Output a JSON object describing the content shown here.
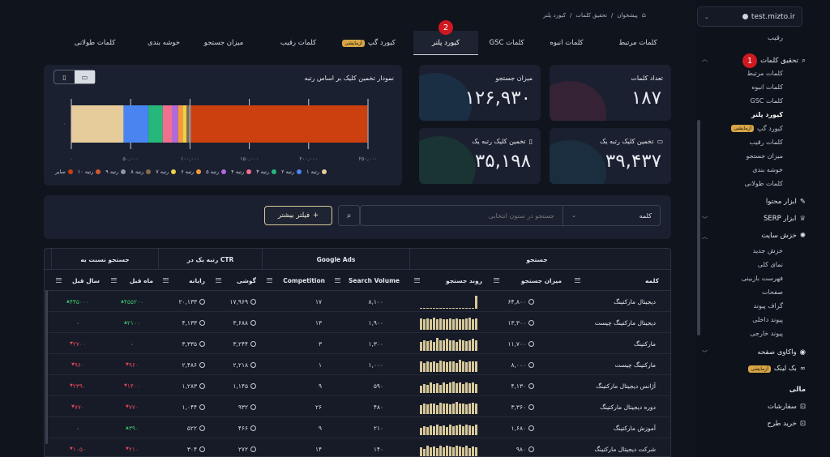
{
  "breadcrumb": [
    "پیشخوان",
    "تحقیق کلمات",
    "کیورد پلنر"
  ],
  "sidebar": {
    "domain": "test.mizto.ir",
    "items_top": "رقیب",
    "research": {
      "label": "تحقیق کلمات",
      "marker": "1"
    },
    "research_sub": [
      "کلمات مرتبط",
      "کلمات انبوه",
      "کلمات GSC",
      "کیورد پلنر",
      "کیورد گپ",
      "کلمات رقیب",
      "میزان جستجو",
      "خوشه بندی",
      "کلمات طولانی"
    ],
    "trial_badge": "آزمایشی",
    "content_tools": "ابزار محتوا",
    "serp_tools": "ابزار SERP",
    "crawl": "خزش سایت",
    "crawl_sub": [
      "خزش جدید",
      "نمای کلی",
      "فهرست بازبینی",
      "صفحات",
      "گراف پیوند",
      "پیوند داخلی",
      "پیوند خارجی"
    ],
    "page_audit": "واکاوی صفحه",
    "backlink": "بک لینک",
    "finance_title": "مالی",
    "orders": "سفارشات",
    "buy_plan": "خرید طرح"
  },
  "tabs": [
    {
      "label": "کلمات مرتبط"
    },
    {
      "label": "کلمات انبوه"
    },
    {
      "label": "کلمات GSC"
    },
    {
      "label": "کیورد پلنر",
      "active": true,
      "marker": "2"
    },
    {
      "label": "کیورد گپ",
      "badge": "آزمایشی"
    },
    {
      "label": "کلمات رقیب"
    },
    {
      "label": "میزان جستجو"
    },
    {
      "label": "خوشه بندی"
    },
    {
      "label": "کلمات طولانی"
    }
  ],
  "cards": [
    {
      "label": "تعداد کلمات",
      "value": "۱۸۷"
    },
    {
      "label": "میزان جستجو",
      "value": "۱۲۶,۹۳۰"
    },
    {
      "label": "تخمین کلیک رتبه یک",
      "value": "۳۹,۴۳۷",
      "icon": "desktop-icon"
    },
    {
      "label": "تخمین کلیک رتبه یک",
      "value": "۳۵,۱۹۸",
      "icon": "mobile-icon"
    }
  ],
  "chart_data": {
    "type": "bar",
    "title": "نمودار تخمین کلیک بر اساس رتبه",
    "orientation": "horizontal-stacked",
    "categories": [
      "۰"
    ],
    "xlim": [
      0,
      250000
    ],
    "xticks": [
      "۰",
      "۵۰,۰۰۰",
      "۱۰۰,۰۰۰",
      "۱۵۰,۰۰۰",
      "۲۰۰,۰۰۰",
      "۲۵۰,۰۰۰"
    ],
    "grid": true,
    "legend_position": "bottom",
    "series": [
      {
        "name": "رتبه ۱",
        "value": 44000,
        "color": "#e6cc9a"
      },
      {
        "name": "رتبه ۲",
        "value": 21000,
        "color": "#4a84f0"
      },
      {
        "name": "رتبه ۳",
        "value": 12000,
        "color": "#25b87a"
      },
      {
        "name": "رتبه ۴",
        "value": 8000,
        "color": "#f07090"
      },
      {
        "name": "رتبه ۵",
        "value": 5000,
        "color": "#b06ae0"
      },
      {
        "name": "رتبه ۶",
        "value": 4000,
        "color": "#f59a3a"
      },
      {
        "name": "رتبه ۷",
        "value": 3000,
        "color": "#e8d24a"
      },
      {
        "name": "رتبه ۸",
        "value": 2000,
        "color": "#8a6a45"
      },
      {
        "name": "رتبه ۹",
        "value": 1500,
        "color": "#8a96a4"
      },
      {
        "name": "رتبه ۱۰",
        "value": 1000,
        "color": "#d05a30"
      },
      {
        "name": "سایر",
        "value": 148000,
        "color": "#cc3f0e"
      }
    ]
  },
  "view_toggle": {
    "active": "desktop"
  },
  "filter": {
    "column_select": "کلمه",
    "search_placeholder": "جستجو در ستون انتخابی",
    "more_filters": "فیلتر بیشتر"
  },
  "table": {
    "groups": [
      "جستجو",
      "Google Ads",
      "CTR رتبه یک در",
      "جستجو نسبت به"
    ],
    "headers": [
      "کلمه",
      "میزان جستجو",
      "روند جستجو",
      "Search Volume",
      "Competition",
      "گوشی",
      "رایانه",
      "ماه قبل",
      "سال قبل"
    ],
    "rows": [
      {
        "keyword": "دیجیتال مارکتینگ",
        "volume": "۶۴,۸۰۰",
        "sv": "۸,۱۰۰",
        "comp": "۱۷",
        "mobile": "۱۷,۹۶۹",
        "desktop": "۲۰,۱۳۳",
        "month": "۴۵۵۲۰۰",
        "month_dir": "up",
        "year": "۴۴۵۰۰۰",
        "year_dir": "up",
        "spark": [
          0,
          0,
          0,
          0,
          0,
          0,
          0,
          0,
          0,
          0,
          0,
          0,
          0,
          0,
          0,
          0,
          0,
          0.9
        ]
      },
      {
        "keyword": "دیجیتال مارکتینگ چیست",
        "volume": "۱۳,۳۰۰",
        "sv": "۱,۹۰۰",
        "comp": "۱۳",
        "mobile": "۳,۶۸۸",
        "desktop": "۴,۱۳۳",
        "month": "۲۱۰۰",
        "month_dir": "up",
        "year": "۰",
        "year_dir": "zero",
        "spark": [
          0.8,
          0.7,
          0.8,
          0.75,
          0.85,
          0.7,
          0.8,
          0.7,
          0.75,
          0.8,
          0.7,
          0.8,
          0.75,
          0.7,
          0.8,
          0.85,
          0.7,
          0.8
        ]
      },
      {
        "keyword": "مارکتینگ",
        "volume": "۱۱,۷۰۰",
        "sv": "۱,۳۰۰",
        "comp": "۳",
        "mobile": "۳,۲۴۴",
        "desktop": "۳,۳۳۵",
        "month": "۰",
        "month_dir": "zero",
        "year": "۲۷۰۰",
        "year_dir": "down",
        "spark": [
          0.6,
          0.7,
          0.65,
          0.7,
          0.6,
          0.9,
          0.75,
          0.7,
          0.85,
          0.7,
          0.75,
          0.6,
          0.8,
          0.7,
          0.65,
          0.7,
          0.85,
          0.75
        ]
      },
      {
        "keyword": "مارکتینگ چیست",
        "volume": "۸,۰۰۰",
        "sv": "۱,۰۰۰",
        "comp": "۱",
        "mobile": "۲,۲۱۸",
        "desktop": "۲,۴۸۶",
        "month": "۹۶۰",
        "month_dir": "down",
        "year": "۹۶۰",
        "year_dir": "down",
        "spark": [
          0.7,
          0.6,
          0.75,
          0.65,
          0.7,
          0.6,
          0.8,
          0.7,
          0.65,
          0.75,
          0.7,
          0.6,
          0.85,
          0.7,
          0.65,
          0.7,
          0.75,
          0.7
        ]
      },
      {
        "keyword": "آژانس دیجیتال مارکتینگ",
        "volume": "۴,۱۳۰",
        "sv": "۵۹۰",
        "comp": "۹",
        "mobile": "۱,۱۴۵",
        "desktop": "۱,۲۸۳",
        "month": "۱۴۰۰",
        "month_dir": "down",
        "year": "۲۳۹۰",
        "year_dir": "down",
        "spark": [
          0.5,
          0.6,
          0.55,
          0.7,
          0.6,
          0.65,
          0.55,
          0.7,
          0.6,
          0.75,
          0.8,
          0.65,
          0.7,
          0.6,
          0.75,
          0.65,
          0.7,
          0.6
        ]
      },
      {
        "keyword": "دوره دیجیتال مارکتینگ",
        "volume": "۳,۳۶۰",
        "sv": "۴۸۰",
        "comp": "۲۶",
        "mobile": "۹۳۲",
        "desktop": "۱,۰۴۴",
        "month": "۷۷۰",
        "month_dir": "down",
        "year": "۷۷۰",
        "year_dir": "down",
        "spark": [
          0.6,
          0.7,
          0.65,
          0.75,
          0.7,
          0.6,
          0.8,
          0.7,
          0.75,
          0.65,
          0.7,
          0.85,
          0.7,
          0.75,
          0.65,
          0.7,
          0.8,
          0.7
        ]
      },
      {
        "keyword": "آموزش مارکتینگ",
        "volume": "۱,۶۸۰",
        "sv": "۲۱۰",
        "comp": "۹",
        "mobile": "۴۶۶",
        "desktop": "۵۲۲",
        "month": "۳۹۰",
        "month_dir": "up",
        "year": "۰",
        "year_dir": "zero",
        "spark": [
          0.5,
          0.6,
          0.55,
          0.65,
          0.6,
          0.7,
          0.6,
          0.65,
          0.55,
          0.7,
          0.6,
          0.65,
          0.75,
          0.6,
          0.7,
          0.65,
          0.6,
          0.7
        ]
      },
      {
        "keyword": "شرکت دیجیتال مارکتینگ",
        "volume": "۹۸۰",
        "sv": "۱۴۰",
        "comp": "۱۴",
        "mobile": "۲۷۲",
        "desktop": "۳۰۴",
        "month": "۲۱۰",
        "month_dir": "down",
        "year": "۱۰۵۰",
        "year_dir": "down",
        "spark": [
          0.6,
          0.5,
          0.7,
          0.6,
          0.65,
          0.55,
          0.7,
          0.6,
          0.75,
          0.65,
          0.6,
          0.7,
          0.65,
          0.6,
          0.7,
          0.55,
          0.65,
          0.6
        ]
      }
    ]
  }
}
